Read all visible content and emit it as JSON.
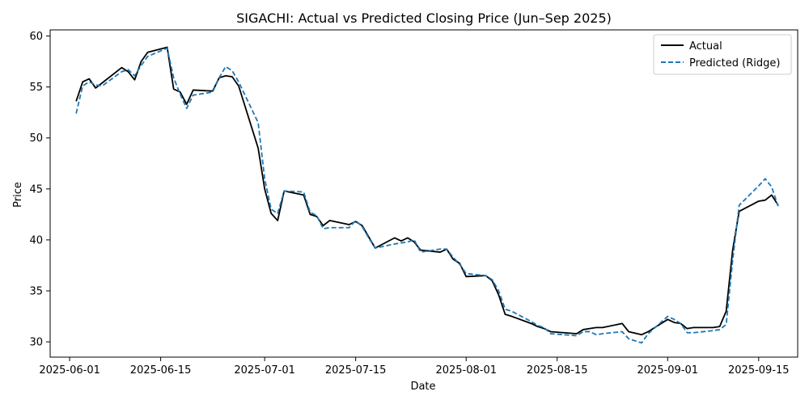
{
  "chart_data": {
    "type": "line",
    "title": "SIGACHI: Actual vs Predicted Closing Price (Jun–Sep 2025)",
    "xlabel": "Date",
    "ylabel": "Price",
    "xlim": [
      "2025-05-29",
      "2025-09-21"
    ],
    "ylim": [
      28.5,
      60.6
    ],
    "x_ticks": [
      "2025-06-01",
      "2025-06-15",
      "2025-07-01",
      "2025-07-15",
      "2025-08-01",
      "2025-08-15",
      "2025-09-01",
      "2025-09-15"
    ],
    "y_ticks": [
      30,
      35,
      40,
      45,
      50,
      55,
      60
    ],
    "grid": false,
    "legend_position": "top-right",
    "x": [
      "2025-06-02",
      "2025-06-03",
      "2025-06-04",
      "2025-06-05",
      "2025-06-06",
      "2025-06-09",
      "2025-06-10",
      "2025-06-11",
      "2025-06-12",
      "2025-06-13",
      "2025-06-16",
      "2025-06-17",
      "2025-06-18",
      "2025-06-19",
      "2025-06-20",
      "2025-06-23",
      "2025-06-24",
      "2025-06-25",
      "2025-06-26",
      "2025-06-27",
      "2025-06-30",
      "2025-07-01",
      "2025-07-02",
      "2025-07-03",
      "2025-07-04",
      "2025-07-07",
      "2025-07-08",
      "2025-07-09",
      "2025-07-10",
      "2025-07-11",
      "2025-07-14",
      "2025-07-15",
      "2025-07-16",
      "2025-07-17",
      "2025-07-18",
      "2025-07-21",
      "2025-07-22",
      "2025-07-23",
      "2025-07-24",
      "2025-07-25",
      "2025-07-28",
      "2025-07-29",
      "2025-07-30",
      "2025-07-31",
      "2025-08-01",
      "2025-08-04",
      "2025-08-05",
      "2025-08-06",
      "2025-08-07",
      "2025-08-08",
      "2025-08-11",
      "2025-08-12",
      "2025-08-13",
      "2025-08-14",
      "2025-08-18",
      "2025-08-19",
      "2025-08-20",
      "2025-08-21",
      "2025-08-22",
      "2025-08-25",
      "2025-08-26",
      "2025-08-28",
      "2025-08-29",
      "2025-09-01",
      "2025-09-02",
      "2025-09-03",
      "2025-09-04",
      "2025-09-05",
      "2025-09-08",
      "2025-09-09",
      "2025-09-10",
      "2025-09-11",
      "2025-09-12",
      "2025-09-15",
      "2025-09-16",
      "2025-09-17",
      "2025-09-18"
    ],
    "series": [
      {
        "name": "Actual",
        "color": "#000000",
        "style": "solid",
        "values": [
          53.6,
          55.5,
          55.8,
          54.9,
          55.4,
          56.9,
          56.5,
          55.7,
          57.5,
          58.4,
          58.9,
          54.8,
          54.5,
          53.3,
          54.7,
          54.6,
          55.9,
          56.1,
          56.0,
          55.1,
          49.0,
          45.0,
          42.6,
          41.9,
          44.8,
          44.4,
          42.5,
          42.3,
          41.4,
          41.9,
          41.5,
          41.8,
          41.4,
          40.3,
          39.2,
          40.2,
          39.9,
          40.2,
          39.8,
          39.0,
          38.8,
          39.1,
          38.1,
          37.7,
          36.4,
          36.5,
          36.0,
          34.6,
          32.7,
          32.5,
          31.8,
          31.5,
          31.3,
          31.0,
          30.8,
          31.2,
          31.3,
          31.4,
          31.4,
          31.8,
          31.0,
          30.7,
          31.0,
          32.2,
          31.9,
          31.8,
          31.3,
          31.4,
          31.4,
          31.5,
          33.0,
          39.0,
          42.8,
          43.8,
          43.9,
          44.4,
          43.4
        ]
      },
      {
        "name": "Predicted (Ridge)",
        "color": "#1f77b4",
        "style": "dashed",
        "values": [
          52.4,
          55.1,
          55.5,
          55.2,
          55.1,
          56.5,
          56.7,
          56.1,
          57.1,
          58.0,
          58.8,
          55.9,
          54.3,
          52.9,
          54.2,
          54.5,
          55.9,
          57.0,
          56.6,
          55.5,
          51.5,
          46.0,
          43.0,
          42.6,
          44.8,
          44.7,
          42.7,
          42.4,
          41.1,
          41.2,
          41.2,
          41.9,
          41.3,
          40.2,
          39.2,
          39.6,
          39.7,
          39.8,
          40.0,
          38.8,
          39.1,
          39.1,
          38.3,
          37.6,
          36.7,
          36.5,
          36.1,
          35.0,
          33.2,
          33.0,
          32.0,
          31.6,
          31.4,
          30.8,
          30.6,
          31.0,
          31.0,
          30.7,
          30.8,
          31.0,
          30.3,
          29.9,
          30.8,
          32.5,
          32.2,
          31.8,
          30.9,
          30.9,
          31.1,
          31.2,
          31.7,
          38.0,
          43.4,
          45.3,
          46.0,
          45.2,
          43.3
        ]
      }
    ]
  }
}
